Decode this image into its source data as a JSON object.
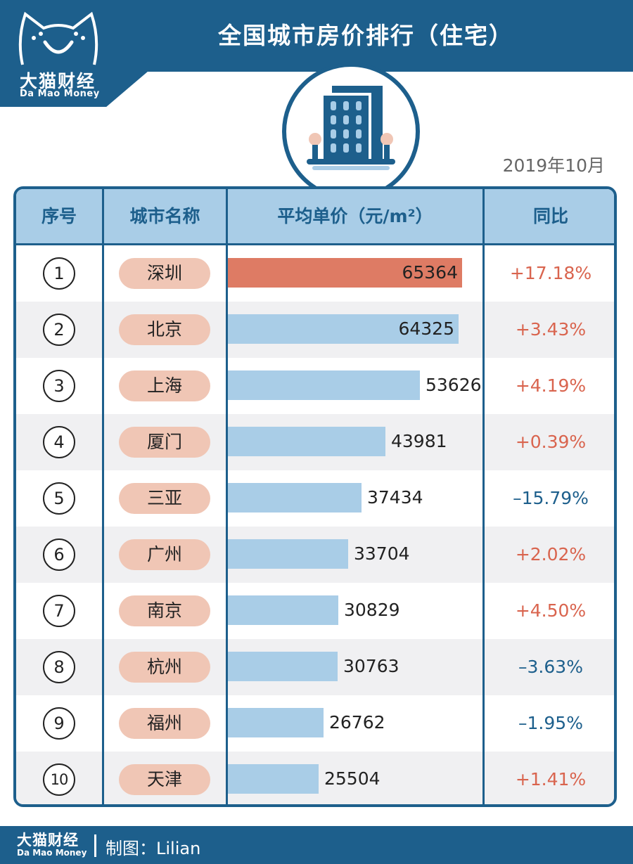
{
  "header": {
    "title": "全国城市房价排行（住宅）",
    "date": "2019年10月",
    "colors": {
      "brand": "#1d5f8c",
      "header_fill": "#a9cde7",
      "bar": "#a9cde7",
      "bar_top": "#de7b64",
      "pill": "#f0c6b5",
      "up": "#d9644e",
      "down": "#1d5f8c"
    }
  },
  "logo": {
    "name_cn": "大猫财经",
    "name_en": "Da Mao Money",
    "icon": "cat-face-icon"
  },
  "badge": {
    "icon": "building-icon"
  },
  "table": {
    "columns": [
      "序号",
      "城市名称",
      "平均单价（元/m²）",
      "同比"
    ]
  },
  "chart_data": {
    "type": "bar",
    "orientation": "horizontal",
    "categories": [
      "深圳",
      "北京",
      "上海",
      "厦门",
      "三亚",
      "广州",
      "南京",
      "杭州",
      "福州",
      "天津"
    ],
    "ranks": [
      "1",
      "2",
      "3",
      "4",
      "5",
      "6",
      "7",
      "8",
      "9",
      "10"
    ],
    "values": [
      65364,
      64325,
      53626,
      43981,
      37434,
      33704,
      30829,
      30763,
      26762,
      25504
    ],
    "yoy": [
      "+17.18%",
      "+3.43%",
      "+4.19%",
      "+0.39%",
      "–15.79%",
      "+2.02%",
      "+4.50%",
      "–3.63%",
      "–1.95%",
      "+1.41%"
    ],
    "xlim": [
      0,
      65364
    ],
    "title": "全国城市房价排行（住宅）"
  },
  "footer": {
    "brand_cn": "大猫财经",
    "brand_en": "Da Mao Money",
    "credit": "制图：Lilian"
  }
}
